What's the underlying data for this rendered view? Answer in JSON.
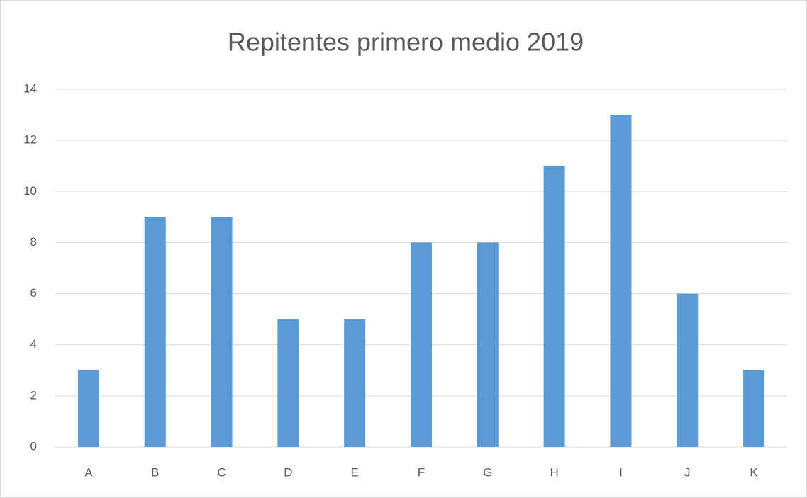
{
  "chart_data": {
    "type": "bar",
    "title": "Repitentes primero medio 2019",
    "categories": [
      "A",
      "B",
      "C",
      "D",
      "E",
      "F",
      "G",
      "H",
      "I",
      "J",
      "K"
    ],
    "values": [
      3,
      9,
      9,
      5,
      5,
      8,
      8,
      11,
      13,
      6,
      3
    ],
    "color": "#5b9bd5",
    "ylim": [
      0,
      14
    ],
    "yticks": [
      0,
      2,
      4,
      6,
      8,
      10,
      12,
      14
    ],
    "grid": true
  }
}
